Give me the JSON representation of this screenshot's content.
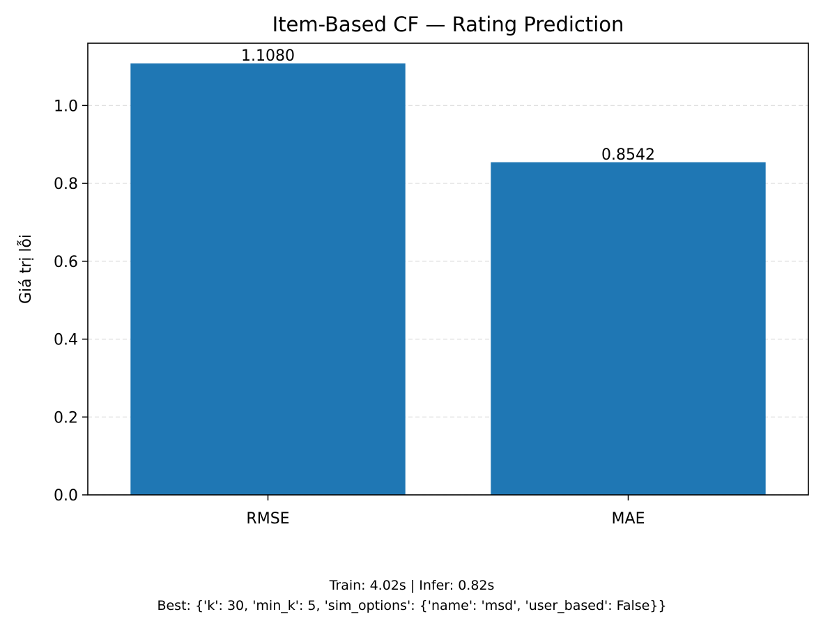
{
  "chart_data": {
    "type": "bar",
    "title": "Item-Based CF — Rating Prediction",
    "xlabel": "",
    "ylabel": "Giá trị lỗi",
    "categories": [
      "RMSE",
      "MAE"
    ],
    "values": [
      1.108,
      0.8542
    ],
    "value_labels": [
      "1.1080",
      "0.8542"
    ],
    "ylim": [
      0,
      1.16
    ],
    "yticks": [
      0.0,
      0.2,
      0.4,
      0.6,
      0.8,
      1.0
    ],
    "ytick_labels": [
      "0.0",
      "0.2",
      "0.4",
      "0.6",
      "0.8",
      "1.0"
    ],
    "grid": "y, dashed",
    "legend": "none",
    "bar_color": "#1f77b4",
    "footnote_lines": [
      "Train: 4.02s | Infer: 0.82s",
      "Best: {'k': 30, 'min_k': 5, 'sim_options': {'name': 'msd', 'user_based': False}}"
    ]
  }
}
